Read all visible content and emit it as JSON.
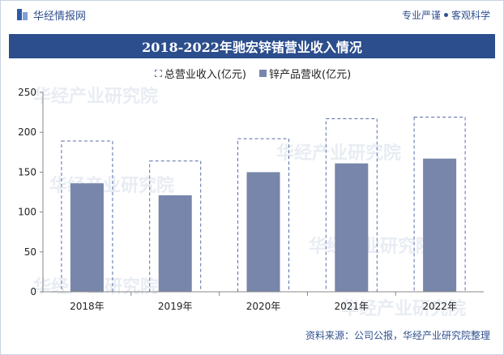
{
  "header": {
    "brand": "华经情报网",
    "slogan_left": "专业严谨",
    "slogan_right": "客观科学"
  },
  "title": "2018-2022年驰宏锌锗营业收入情况",
  "legend": {
    "total": "总营业收入(亿元)",
    "zinc": "锌产品营收(亿元)"
  },
  "watermark": "华经产业研究院",
  "watermark_url": "www.huaon.com",
  "source": "资料来源：公司公报，华经产业研究院整理",
  "colors": {
    "brand": "#2c4e8d",
    "bar": "#7786aa",
    "dash": "#5a6ea8"
  },
  "chart_data": {
    "type": "bar",
    "categories": [
      "2018年",
      "2019年",
      "2020年",
      "2021年",
      "2022年"
    ],
    "series": [
      {
        "name": "总营业收入(亿元)",
        "values": [
          189,
          164,
          192,
          217,
          219
        ]
      },
      {
        "name": "锌产品营收(亿元)",
        "values": [
          136,
          121,
          150,
          161,
          167
        ]
      }
    ],
    "ylim": [
      0,
      250
    ],
    "yticks": [
      0,
      50,
      100,
      150,
      200,
      250
    ],
    "grid": false,
    "legend_position": "top-center"
  }
}
